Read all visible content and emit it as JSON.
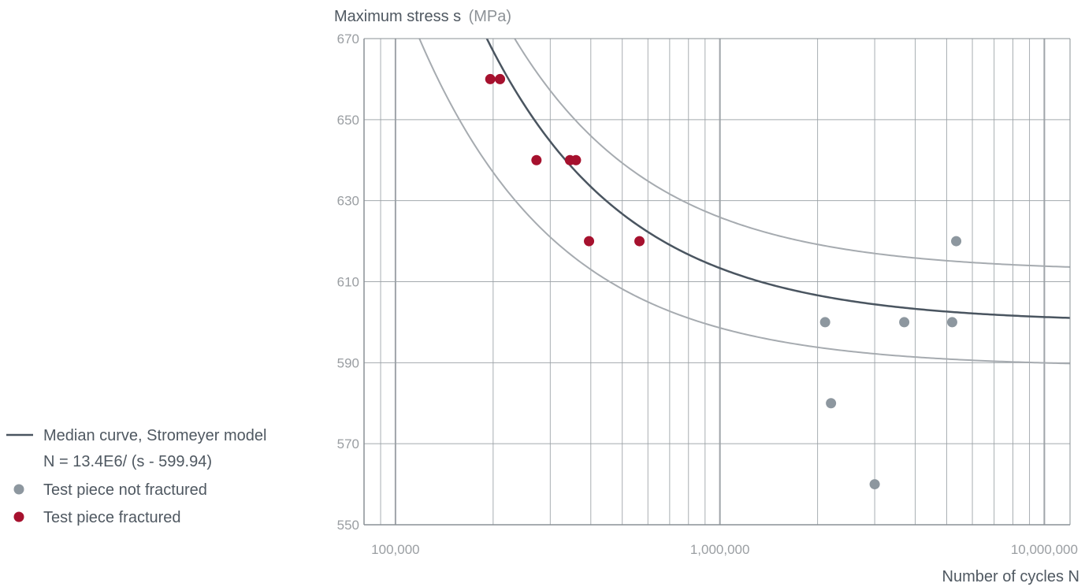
{
  "chart_data": {
    "type": "scatter",
    "title": "",
    "ylabel": "Maximum stress s",
    "ylabel_unit": "(MPa)",
    "xlabel": "Number of cycles N",
    "x_scale": "log",
    "xlim": [
      80000,
      12000000
    ],
    "ylim": [
      550,
      670
    ],
    "x_ticks": [
      100000,
      1000000,
      10000000
    ],
    "x_tick_labels": [
      "100,000",
      "1,000,000",
      "10,000,000"
    ],
    "y_ticks": [
      550,
      570,
      590,
      610,
      630,
      650,
      670
    ],
    "y_tick_labels": [
      "550",
      "570",
      "590",
      "610",
      "630",
      "650",
      "670"
    ],
    "grid": true,
    "legend_position": "bottom-left",
    "colors": {
      "median": "#4a5560",
      "bands": "#a6abb0",
      "not_fractured": "#8d979f",
      "fractured": "#a6112e",
      "grid": "#9aa0a5"
    },
    "curves": [
      {
        "role": "median",
        "label": "Median curve, Stromeyer model",
        "equation": "N = 13.4E6/ (s - 599.94)",
        "C": 13400000,
        "s0": 599.94
      },
      {
        "role": "upper",
        "C": 13400000,
        "s0": 612.5
      },
      {
        "role": "lower",
        "C": 9600000,
        "s0": 589
      }
    ],
    "series": [
      {
        "name": "Test piece not fractured",
        "marker_color": "#8d979f",
        "points": [
          [
            2110000,
            600
          ],
          [
            2200000,
            580
          ],
          [
            3000000,
            560
          ],
          [
            3700000,
            600
          ],
          [
            5200000,
            600
          ],
          [
            5350000,
            620
          ]
        ]
      },
      {
        "name": "Test piece fractured",
        "marker_color": "#a6112e",
        "points": [
          [
            196000,
            660
          ],
          [
            210000,
            660
          ],
          [
            272000,
            640
          ],
          [
            345000,
            640
          ],
          [
            360000,
            640
          ],
          [
            395000,
            620
          ],
          [
            565000,
            620
          ]
        ]
      }
    ]
  },
  "legend": {
    "line_label": "Median curve, Stromeyer model",
    "equation": "N = 13.4E6/ (s - 599.94)",
    "not_fractured_label": "Test piece not fractured",
    "fractured_label": "Test piece fractured"
  }
}
